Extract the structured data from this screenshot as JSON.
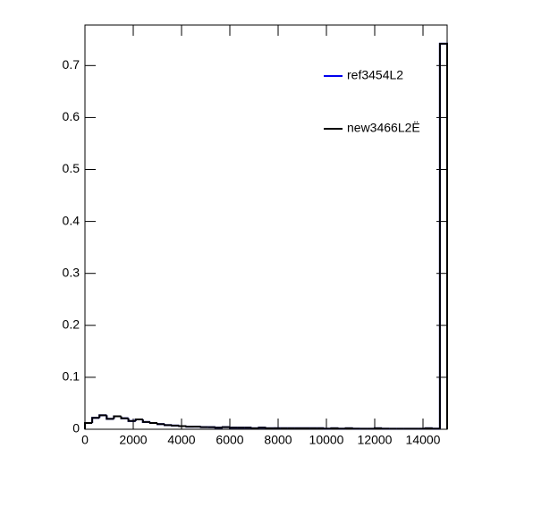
{
  "chart_data": {
    "type": "histogram",
    "bins": [
      0,
      300,
      600,
      900,
      1200,
      1500,
      1800,
      2100,
      2400,
      2700,
      3000,
      3300,
      3600,
      3900,
      4200,
      4500,
      4800,
      5100,
      5400,
      5700,
      6000,
      6300,
      6600,
      6900,
      7200,
      7500,
      7800,
      8100,
      8400,
      8700,
      9000,
      9300,
      9600,
      9900,
      10200,
      10500,
      10800,
      11100,
      11400,
      11700,
      12000,
      12300,
      12600,
      12900,
      13200,
      13500,
      13800,
      14100,
      14400,
      14700,
      15000
    ],
    "series": [
      {
        "name": "ref3454L2",
        "color": "#0000ee",
        "values": [
          0.012,
          0.022,
          0.027,
          0.02,
          0.025,
          0.021,
          0.016,
          0.019,
          0.014,
          0.012,
          0.01,
          0.008,
          0.007,
          0.006,
          0.005,
          0.005,
          0.004,
          0.004,
          0.003,
          0.004,
          0.003,
          0.003,
          0.003,
          0.002,
          0.003,
          0.002,
          0.002,
          0.002,
          0.002,
          0.002,
          0.002,
          0.002,
          0.002,
          0.001,
          0.002,
          0.001,
          0.002,
          0.001,
          0.001,
          0.001,
          0.002,
          0.001,
          0.001,
          0.001,
          0.001,
          0.001,
          0.001,
          0.002,
          0.001,
          0.742
        ]
      },
      {
        "name": "new3466L2Ë",
        "color": "#000000",
        "values": [
          0.012,
          0.022,
          0.027,
          0.02,
          0.025,
          0.021,
          0.016,
          0.019,
          0.014,
          0.012,
          0.01,
          0.008,
          0.007,
          0.006,
          0.005,
          0.005,
          0.004,
          0.004,
          0.003,
          0.004,
          0.003,
          0.003,
          0.003,
          0.002,
          0.003,
          0.002,
          0.002,
          0.002,
          0.002,
          0.002,
          0.002,
          0.002,
          0.002,
          0.001,
          0.002,
          0.001,
          0.002,
          0.001,
          0.001,
          0.001,
          0.002,
          0.001,
          0.001,
          0.001,
          0.001,
          0.001,
          0.001,
          0.002,
          0.001,
          0.742
        ]
      }
    ],
    "xlim": [
      0,
      15000
    ],
    "xticks": [
      0,
      2000,
      4000,
      6000,
      8000,
      10000,
      12000,
      14000
    ],
    "ylim": [
      0,
      0.778
    ],
    "yticks": [
      0,
      0.1,
      0.2,
      0.3,
      0.4,
      0.5,
      0.6,
      0.7
    ],
    "legend": "top-right"
  }
}
